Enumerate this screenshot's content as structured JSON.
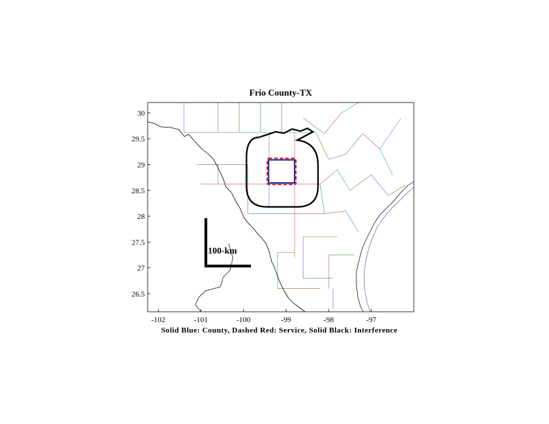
{
  "chart_data": {
    "type": "map",
    "title": "Frio County-TX",
    "xlabel": "Solid Blue: County, Dashed Red: Service, Solid Black: Interference",
    "xlim": [
      -102.25,
      -96.0
    ],
    "ylim": [
      26.15,
      30.2
    ],
    "x_ticks": [
      -102,
      -101,
      -100,
      -99,
      -98,
      -97
    ],
    "y_ticks": [
      26.5,
      27,
      27.5,
      28,
      28.5,
      29,
      29.5,
      30
    ],
    "scale_bar": {
      "label": "100-km"
    },
    "county": {
      "color": "#1f2a9c",
      "lon": [
        -99.41,
        -98.8
      ],
      "lat": [
        28.645,
        29.09
      ]
    },
    "service": {
      "color": "#e0101a",
      "lon": [
        -99.44,
        -98.77
      ],
      "lat": [
        28.615,
        29.12
      ]
    },
    "interference": {
      "color": "#000000",
      "lon": [
        -99.93,
        -98.25
      ],
      "lat": [
        28.18,
        29.66
      ]
    },
    "colors": {
      "boundary_black": "#000000",
      "county_lines": [
        "#7a5fc4",
        "#2f9a4f",
        "#b84aa8",
        "#4f7fd0",
        "#d24a6a",
        "#1fa7a7",
        "#9a6b2f"
      ]
    }
  }
}
